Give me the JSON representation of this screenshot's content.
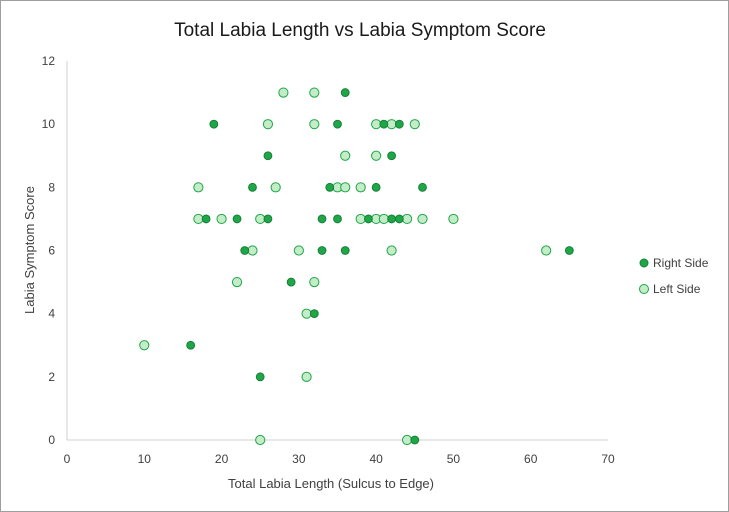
{
  "chart_data": {
    "type": "scatter",
    "title": "Total Labia Length vs Labia Symptom Score",
    "xlabel": "Total Labia Length (Sulcus to Edge)",
    "ylabel": "Labia Symptom Score",
    "xlim": [
      0,
      70
    ],
    "ylim": [
      0,
      12
    ],
    "x_ticks": [
      0,
      10,
      20,
      30,
      40,
      50,
      60,
      70
    ],
    "y_ticks": [
      0,
      2,
      4,
      6,
      8,
      10,
      12
    ],
    "grid": false,
    "legend_position": "right",
    "series": [
      {
        "name": "Right Side",
        "color": "#1fa647",
        "stroke": "#16803a",
        "points": [
          [
            36,
            11
          ],
          [
            19,
            10
          ],
          [
            35,
            10
          ],
          [
            41,
            10
          ],
          [
            43,
            10
          ],
          [
            26,
            9
          ],
          [
            42,
            9
          ],
          [
            24,
            8
          ],
          [
            34,
            8
          ],
          [
            40,
            8
          ],
          [
            46,
            8
          ],
          [
            18,
            7
          ],
          [
            22,
            7
          ],
          [
            26,
            7
          ],
          [
            33,
            7
          ],
          [
            35,
            7
          ],
          [
            39,
            7
          ],
          [
            42,
            7
          ],
          [
            43,
            7
          ],
          [
            23,
            6
          ],
          [
            33,
            6
          ],
          [
            36,
            6
          ],
          [
            65,
            6
          ],
          [
            29,
            5
          ],
          [
            32,
            4
          ],
          [
            16,
            3
          ],
          [
            25,
            2
          ],
          [
            45,
            0
          ]
        ]
      },
      {
        "name": "Left Side",
        "color": "#c4ecc8",
        "stroke": "#1fa647",
        "points": [
          [
            28,
            11
          ],
          [
            32,
            11
          ],
          [
            26,
            10
          ],
          [
            32,
            10
          ],
          [
            40,
            10
          ],
          [
            42,
            10
          ],
          [
            45,
            10
          ],
          [
            36,
            9
          ],
          [
            40,
            9
          ],
          [
            17,
            8
          ],
          [
            27,
            8
          ],
          [
            35,
            8
          ],
          [
            36,
            8
          ],
          [
            38,
            8
          ],
          [
            17,
            7
          ],
          [
            20,
            7
          ],
          [
            25,
            7
          ],
          [
            38,
            7
          ],
          [
            40,
            7
          ],
          [
            41,
            7
          ],
          [
            44,
            7
          ],
          [
            46,
            7
          ],
          [
            50,
            7
          ],
          [
            24,
            6
          ],
          [
            30,
            6
          ],
          [
            42,
            6
          ],
          [
            62,
            6
          ],
          [
            22,
            5
          ],
          [
            32,
            5
          ],
          [
            31,
            4
          ],
          [
            10,
            3
          ],
          [
            31,
            2
          ],
          [
            25,
            0
          ],
          [
            44,
            0
          ]
        ]
      }
    ]
  }
}
